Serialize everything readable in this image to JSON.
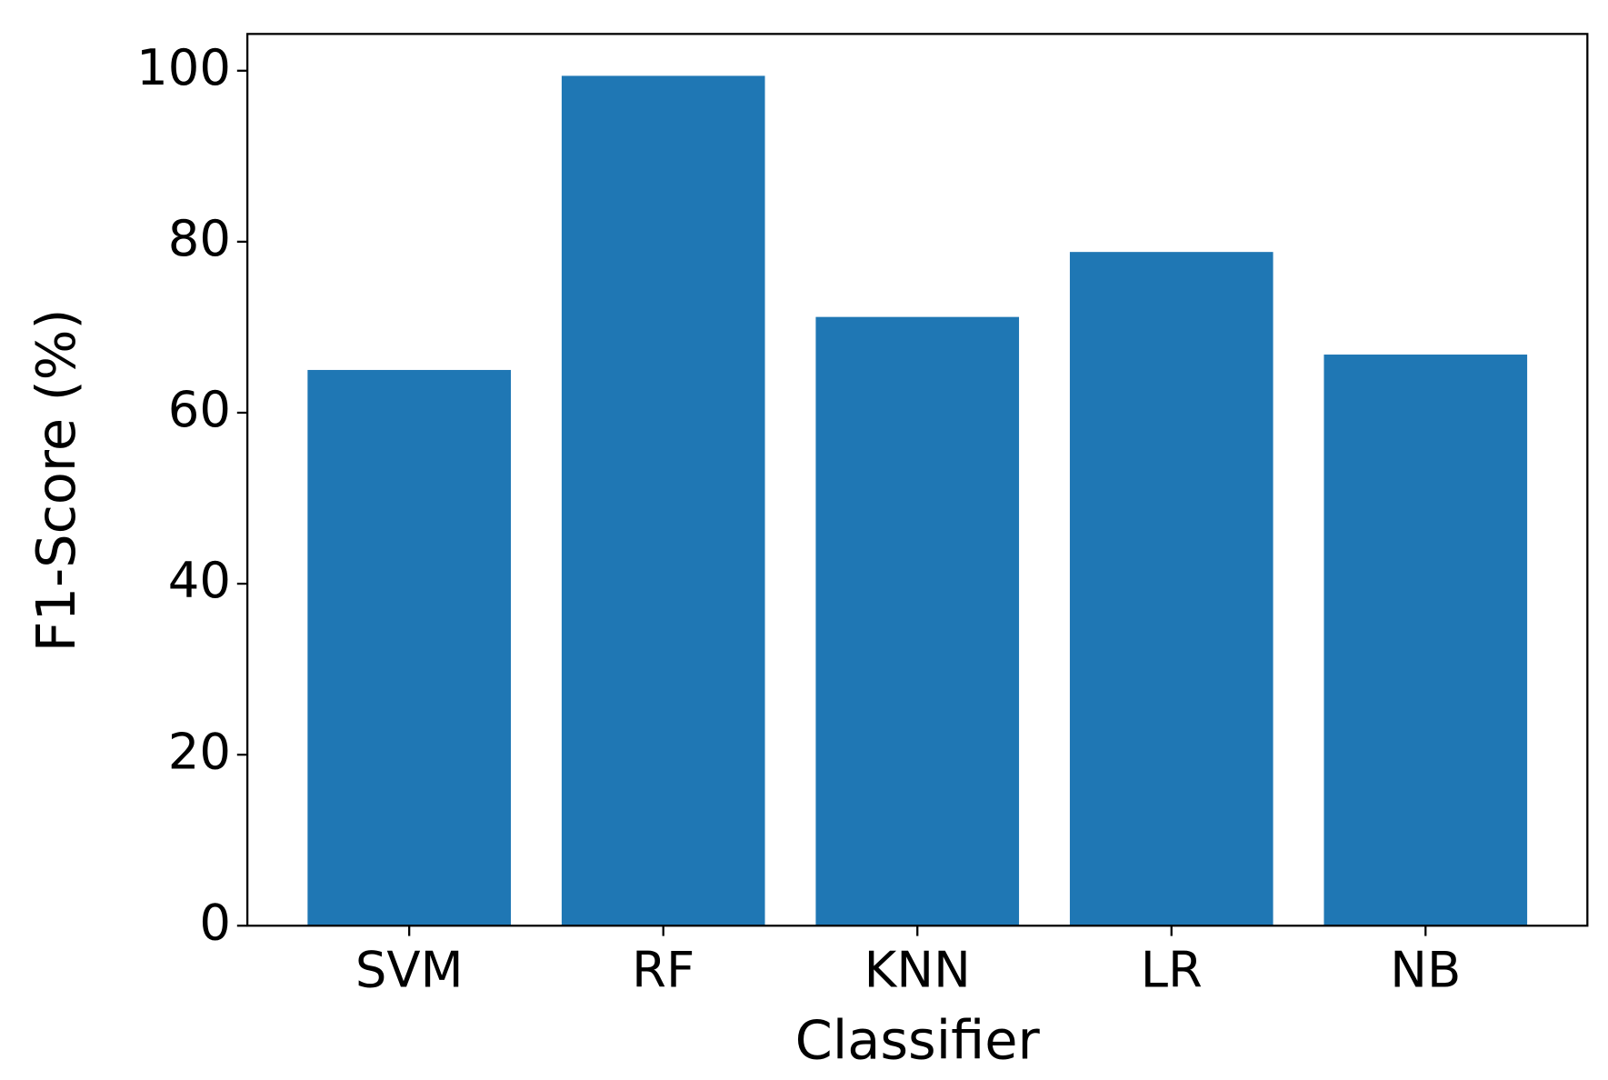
{
  "chart_data": {
    "type": "bar",
    "x_label": "Classifier",
    "y_label": "F1-Score (%)",
    "categories": [
      "SVM",
      "RF",
      "KNN",
      "LR",
      "NB"
    ],
    "values": [
      65.0,
      99.4,
      71.2,
      78.8,
      66.8
    ],
    "color": "#1f77b4",
    "ylim": [
      0,
      104.3
    ],
    "yticks": [
      0,
      20,
      40,
      60,
      80,
      100
    ],
    "grid": false
  }
}
